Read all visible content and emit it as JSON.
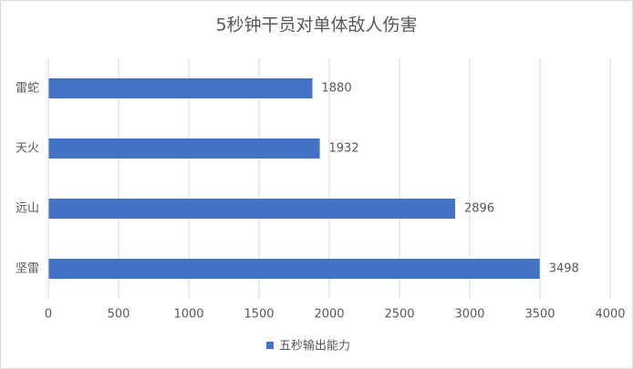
{
  "chart_data": {
    "type": "barh",
    "title": "5秒钟干员对单体敌人伤害",
    "categories": [
      "雷蛇",
      "天火",
      "远山",
      "坚雷"
    ],
    "series": [
      {
        "name": "五秒输出能力",
        "color": "#4472c4",
        "values": [
          1880,
          1932,
          2896,
          3498
        ]
      }
    ],
    "xlim": [
      0,
      4000
    ],
    "xticks": [
      0,
      500,
      1000,
      1500,
      2000,
      2500,
      3000,
      3500,
      4000
    ],
    "grid": true,
    "data_labels": true,
    "legend": "bottom"
  }
}
